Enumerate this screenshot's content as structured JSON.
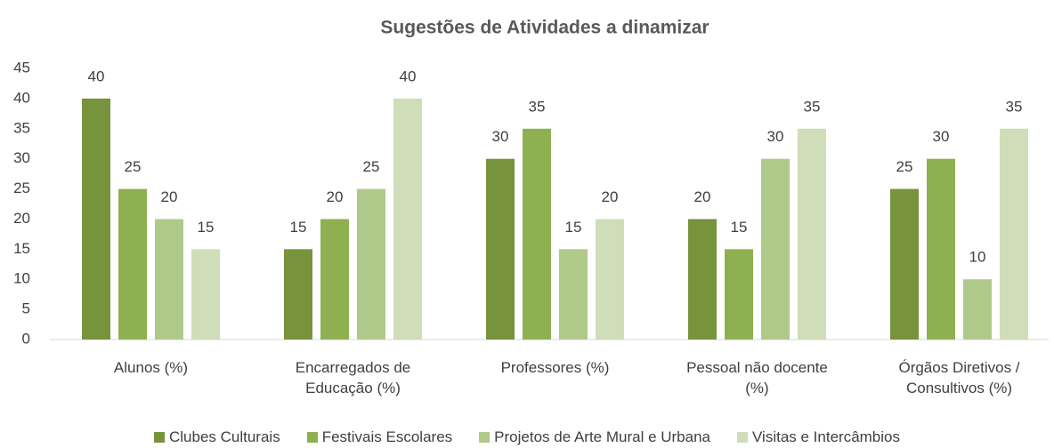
{
  "chart_data": {
    "type": "bar",
    "title": "Sugestões de Atividades a dinamizar",
    "categories": [
      "Alunos (%)",
      "Encarregados de Educação (%)",
      "Professores (%)",
      "Pessoal não docente (%)",
      "Órgãos Diretivos / Consultivos (%)"
    ],
    "series": [
      {
        "name": "Clubes Culturais",
        "color": "#77933c",
        "values": [
          40,
          15,
          30,
          20,
          25
        ]
      },
      {
        "name": "Festivais Escolares",
        "color": "#8fb050",
        "values": [
          25,
          20,
          35,
          15,
          30
        ]
      },
      {
        "name": "Projetos de Arte Mural e Urbana",
        "color": "#afc98a",
        "values": [
          20,
          25,
          15,
          30,
          10
        ]
      },
      {
        "name": "Visitas e Intercâmbios",
        "color": "#cfddb8",
        "values": [
          15,
          40,
          20,
          35,
          35
        ]
      }
    ],
    "ylim": [
      0,
      45
    ],
    "yticks": [
      0,
      5,
      10,
      15,
      20,
      25,
      30,
      35,
      40,
      45
    ],
    "grid": false,
    "legend": "bottom"
  }
}
